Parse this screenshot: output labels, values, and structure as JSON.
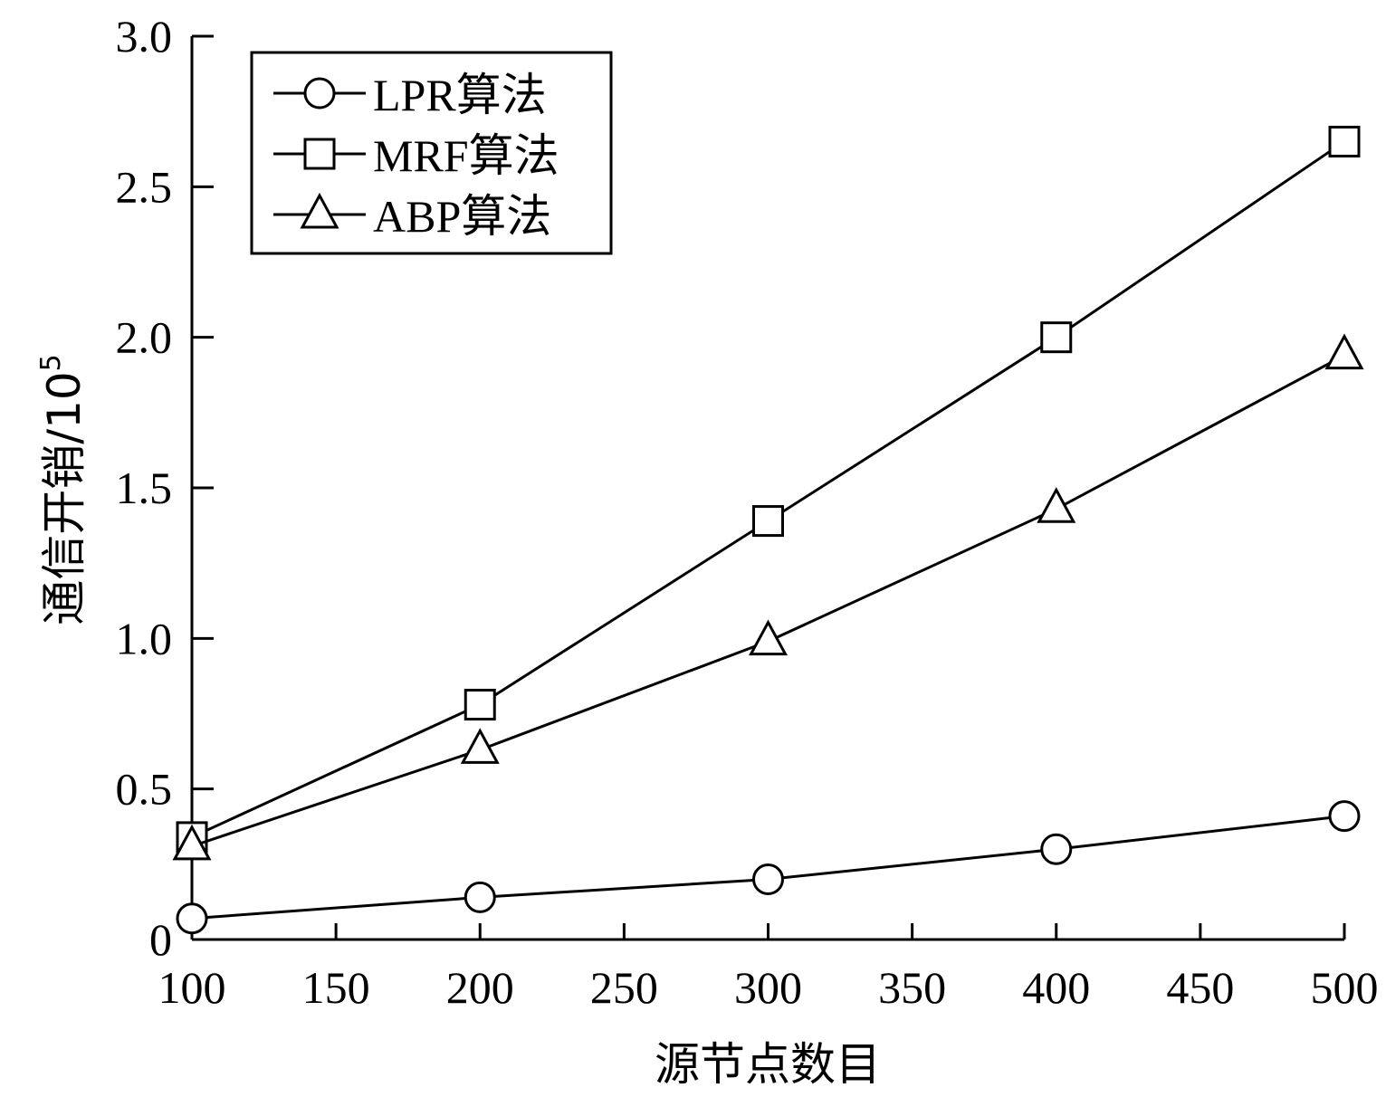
{
  "chart_data": {
    "type": "line",
    "xlabel": "源节点数目",
    "ylabel": "通信开销/10",
    "ylabel_superscript": "5",
    "xlim": [
      100,
      500
    ],
    "ylim": [
      0,
      3.0
    ],
    "x_ticks": [
      100,
      150,
      200,
      250,
      300,
      350,
      400,
      450,
      500
    ],
    "x_tick_labels": [
      "100",
      "150",
      "200",
      "250",
      "300",
      "350",
      "400",
      "450",
      "500"
    ],
    "y_ticks": [
      0,
      0.5,
      1.0,
      1.5,
      2.0,
      2.5,
      3.0
    ],
    "y_tick_labels": [
      "0",
      "0.5",
      "1.0",
      "1.5",
      "2.0",
      "2.5",
      "3.0"
    ],
    "grid": false,
    "legend_position": "top-left",
    "series": [
      {
        "name": "LPR算法",
        "marker": "circle",
        "x": [
          100,
          200,
          300,
          400,
          500
        ],
        "y": [
          0.07,
          0.14,
          0.2,
          0.3,
          0.41
        ]
      },
      {
        "name": "MRF算法",
        "marker": "square",
        "x": [
          100,
          200,
          300,
          400,
          500
        ],
        "y": [
          0.34,
          0.78,
          1.39,
          2.0,
          2.65
        ]
      },
      {
        "name": "ABP算法",
        "marker": "triangle",
        "x": [
          100,
          200,
          300,
          400,
          500
        ],
        "y": [
          0.31,
          0.63,
          0.99,
          1.43,
          1.94
        ]
      }
    ]
  }
}
